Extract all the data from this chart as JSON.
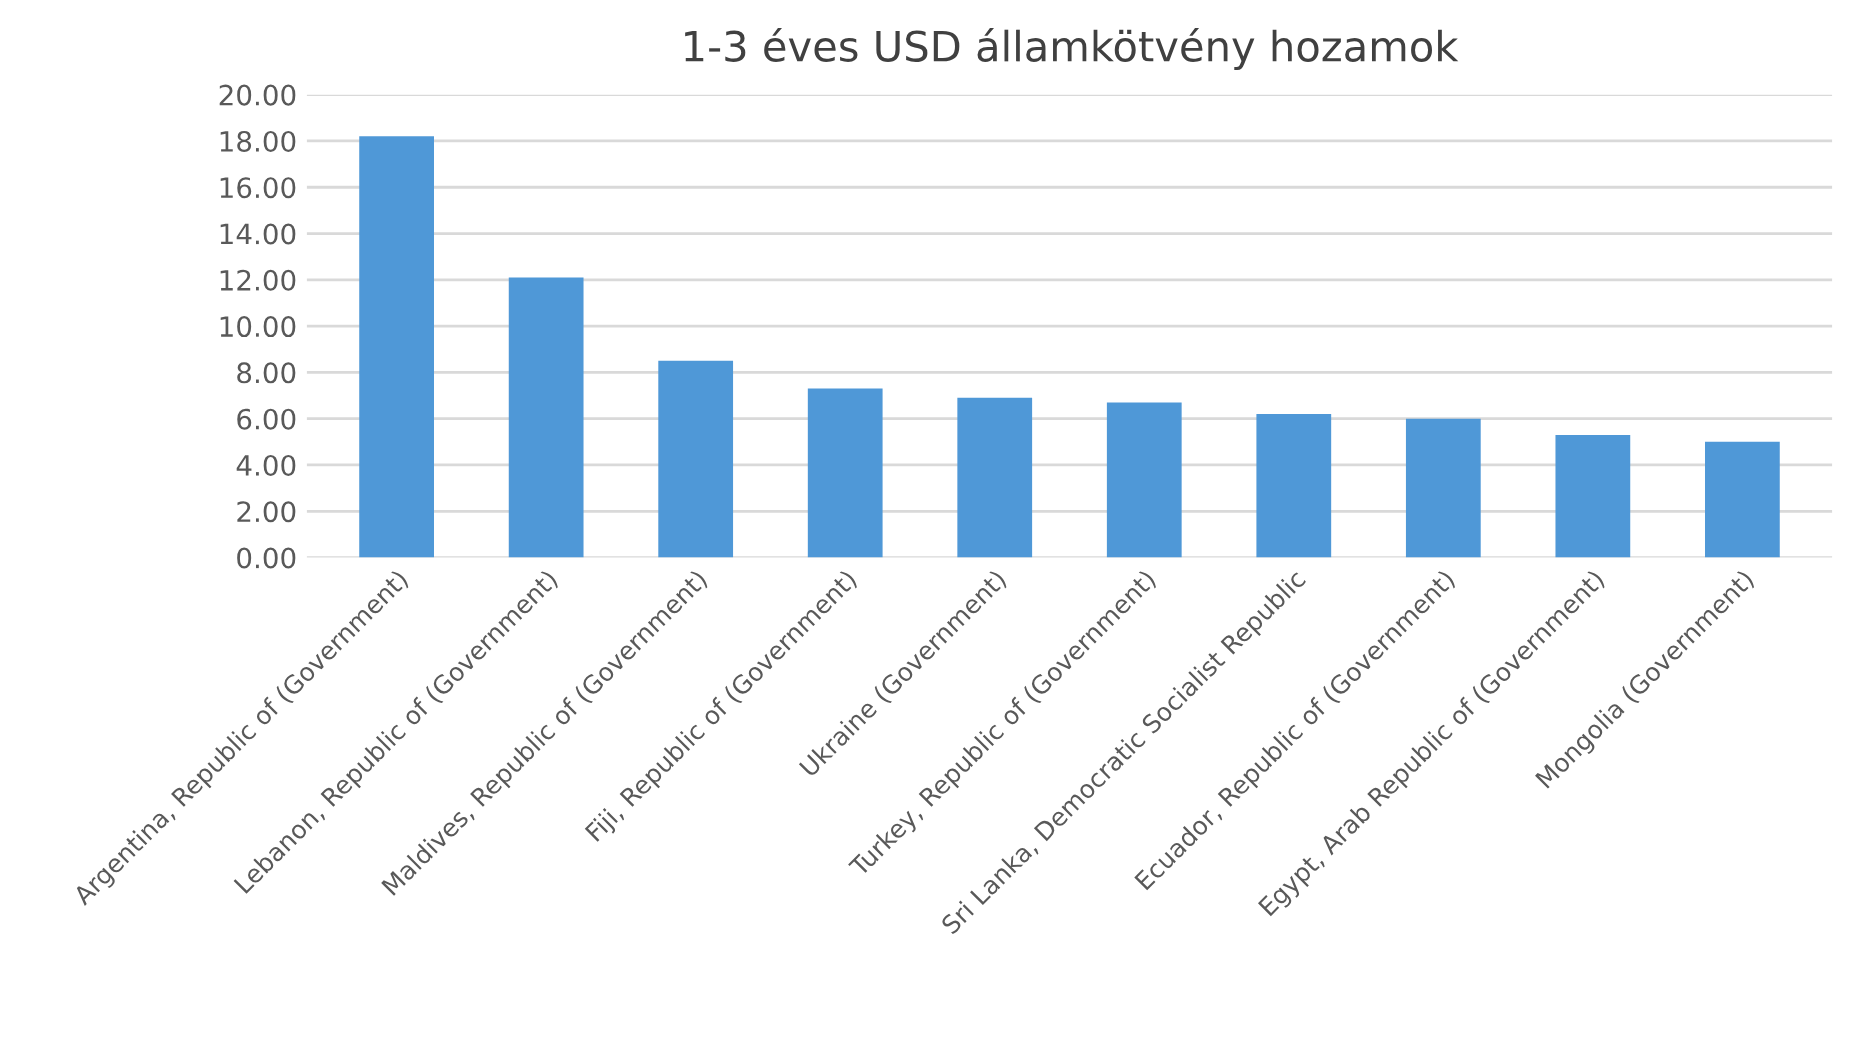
{
  "chart_data": {
    "type": "bar",
    "title": "1-3 éves USD államkötvény hozamok",
    "categories": [
      "Argentina, Republic of (Government)",
      "Lebanon, Republic of (Government)",
      "Maldives, Republic of (Government)",
      "Fiji, Republic of (Government)",
      "Ukraine (Government)",
      "Turkey, Republic of (Government)",
      "Sri Lanka, Democratic Socialist Republic",
      "Ecuador, Republic of (Government)",
      "Egypt, Arab Republic of (Government)",
      "Mongolia (Government)"
    ],
    "values": [
      18.2,
      12.1,
      8.5,
      7.3,
      6.9,
      6.7,
      6.2,
      6.0,
      5.3,
      5.0
    ],
    "color": "#4f98d7",
    "ylim": [
      0,
      20
    ],
    "yticks": [
      {
        "value": 0,
        "label": "0.00"
      },
      {
        "value": 2,
        "label": "2.00"
      },
      {
        "value": 4,
        "label": "4.00"
      },
      {
        "value": 6,
        "label": "6.00"
      },
      {
        "value": 8,
        "label": "8.00"
      },
      {
        "value": 10,
        "label": "10.00"
      },
      {
        "value": 12,
        "label": "12.00"
      },
      {
        "value": 14,
        "label": "14.00"
      },
      {
        "value": 16,
        "label": "16.00"
      },
      {
        "value": 18,
        "label": "18.00"
      },
      {
        "value": 20,
        "label": "20.00"
      }
    ],
    "grid": "y"
  }
}
